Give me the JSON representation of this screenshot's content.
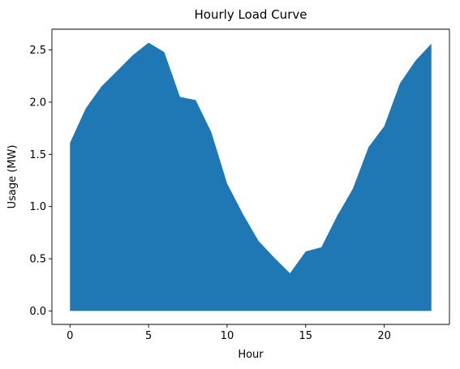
{
  "chart_data": {
    "type": "area",
    "title": "Hourly Load Curve",
    "xlabel": "Hour",
    "ylabel": "Usage (MW)",
    "x": [
      0,
      1,
      2,
      3,
      4,
      5,
      6,
      7,
      8,
      9,
      10,
      11,
      12,
      13,
      14,
      15,
      16,
      17,
      18,
      19,
      20,
      21,
      22,
      23
    ],
    "series": [
      {
        "values": [
          1.61,
          1.94,
          2.15,
          2.3,
          2.45,
          2.57,
          2.48,
          2.05,
          2.02,
          1.71,
          1.22,
          0.93,
          0.67,
          0.51,
          0.36,
          0.57,
          0.61,
          0.91,
          1.17,
          1.57,
          1.77,
          2.18,
          2.4,
          2.56
        ],
        "color": "#1f77b4"
      }
    ],
    "baseline": 0,
    "xlim": [
      -1.15,
      24.15
    ],
    "ylim": [
      -0.129,
      2.699
    ],
    "xticks": [
      "0",
      "5",
      "10",
      "15",
      "20"
    ],
    "xtick_values": [
      0,
      5,
      10,
      15,
      20
    ],
    "yticks": [
      "0.0",
      "0.5",
      "1.0",
      "1.5",
      "2.0",
      "2.5"
    ],
    "ytick_values": [
      0,
      0.5,
      1.0,
      1.5,
      2.0,
      2.5
    ],
    "grid": false,
    "legend": false
  }
}
